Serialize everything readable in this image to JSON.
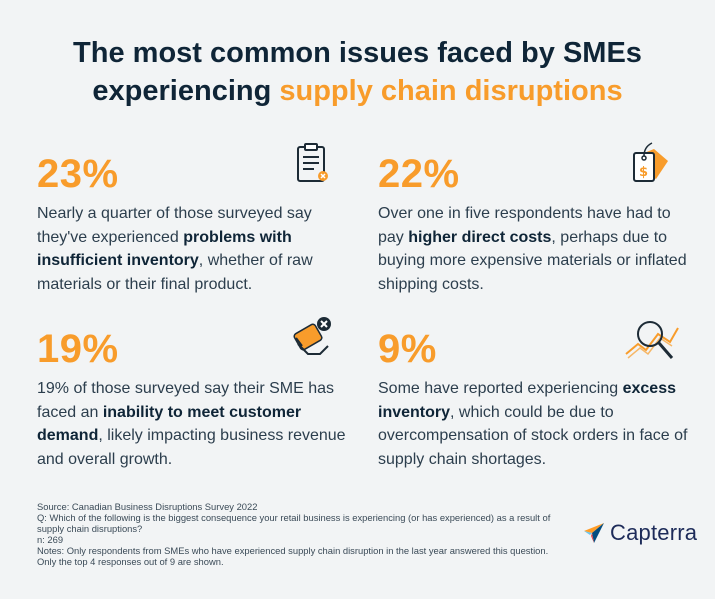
{
  "title": {
    "line1": "The most common issues faced by SMEs",
    "line2_plain": "experiencing ",
    "line2_accent": "supply chain disruptions"
  },
  "stats": [
    {
      "percent": "23%",
      "text_before": "Nearly a quarter of those surveyed say they've experienced ",
      "text_bold": "problems with insufficient inventory",
      "text_after": ", whether of raw materials or their final product.",
      "icon": "clipboard-icon"
    },
    {
      "percent": "22%",
      "text_before": "Over one in five respondents have had to pay ",
      "text_bold": "higher direct costs",
      "text_after": ", perhaps due to buying more expensive materials or inflated shipping costs.",
      "icon": "price-tag-icon"
    },
    {
      "percent": "19%",
      "text_before": "19% of those surveyed say their SME has faced an ",
      "text_bold": "inability to meet customer demand",
      "text_after": ", likely impacting business revenue and overall growth.",
      "icon": "payment-hand-icon"
    },
    {
      "percent": "9%",
      "text_before": "Some have reported experiencing ",
      "text_bold": "excess inventory",
      "text_after": ", which could be due to overcompensation of stock orders in face of supply chain shortages.",
      "icon": "magnifier-chart-icon"
    }
  ],
  "footer": {
    "source": "Source: Canadian Business Disruptions Survey 2022",
    "question": "Q: Which of the following is the biggest consequence your retail business is experiencing (or has experienced) as a result of supply chain disruptions?",
    "n": "n: 269",
    "notes": "Notes: Only respondents from SMEs who have experienced supply chain disruption in the last year answered this question. Only the top 4 responses out of 9 are shown."
  },
  "logo": {
    "text": "Capterra",
    "icon": "capterra-arrow-icon"
  },
  "colors": {
    "accent": "#f89c2b",
    "heading": "#0f2537",
    "background": "#f2f4f5"
  }
}
